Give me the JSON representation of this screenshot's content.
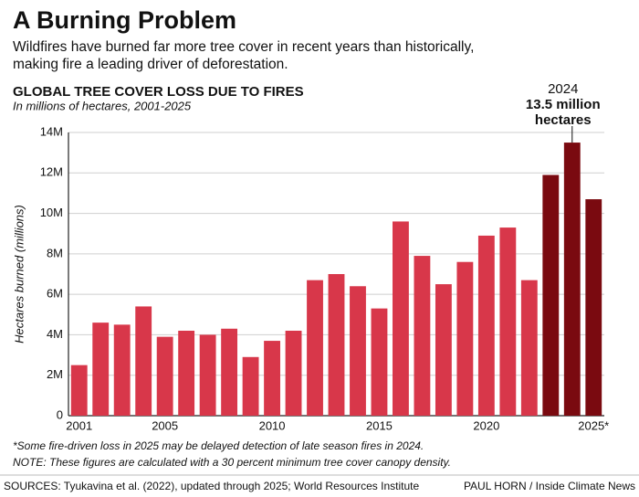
{
  "chart_data": {
    "type": "bar",
    "title": "A Burning Problem",
    "subtitle": [
      "Wildfires have burned far more tree cover in recent years than historically,",
      "making fire a leading driver of deforestation."
    ],
    "chart_title": "GLOBAL TREE COVER LOSS DUE TO FIRES",
    "chart_subtitle": "In millions of hectares, 2001-2025",
    "y_label": "Hectares burned (millions)",
    "categories": [
      "2001",
      null,
      null,
      null,
      "2005",
      null,
      null,
      null,
      null,
      "2010",
      null,
      null,
      null,
      null,
      "2015",
      null,
      null,
      null,
      null,
      "2020",
      null,
      null,
      null,
      null,
      "2025*"
    ],
    "values": [
      2.5,
      4.6,
      4.5,
      5.4,
      3.9,
      4.2,
      4.0,
      4.3,
      2.9,
      3.7,
      4.2,
      6.7,
      7.0,
      6.4,
      5.3,
      9.6,
      7.9,
      6.5,
      7.6,
      8.9,
      9.3,
      6.7,
      11.9,
      13.5,
      10.7
    ],
    "colors": [
      "#d8374a",
      "#d8374a",
      "#d8374a",
      "#d8374a",
      "#d8374a",
      "#d8374a",
      "#d8374a",
      "#d8374a",
      "#d8374a",
      "#d8374a",
      "#d8374a",
      "#d8374a",
      "#d8374a",
      "#d8374a",
      "#d8374a",
      "#d8374a",
      "#d8374a",
      "#d8374a",
      "#d8374a",
      "#d8374a",
      "#d8374a",
      "#d8374a",
      "#7a0a10",
      "#7a0a10",
      "#7a0a10"
    ],
    "ylim": [
      0,
      14
    ],
    "yticks": [
      0,
      {
        "value": 2,
        "label": "2M"
      },
      {
        "value": 4,
        "label": "4M"
      },
      {
        "value": 6,
        "label": "6M"
      },
      {
        "value": 8,
        "label": "8M"
      },
      {
        "value": 10,
        "label": "10M"
      },
      {
        "value": 12,
        "label": "12M"
      },
      {
        "value": 14,
        "label": "14M"
      }
    ],
    "grid": true,
    "annotation": {
      "year": "2024",
      "lines": [
        "13.5 million",
        "hectares"
      ],
      "index": 23
    },
    "notes": [
      "*Some fire-driven loss in 2025 may be delayed detection of late season fires in 2024.",
      "NOTE: These figures are calculated with a 30 percent minimum tree cover canopy density."
    ],
    "sources": "SOURCES: Tyukavina et al. (2022), updated through 2025; World Resources Institute",
    "credit": "PAUL HORN / Inside Climate News"
  }
}
